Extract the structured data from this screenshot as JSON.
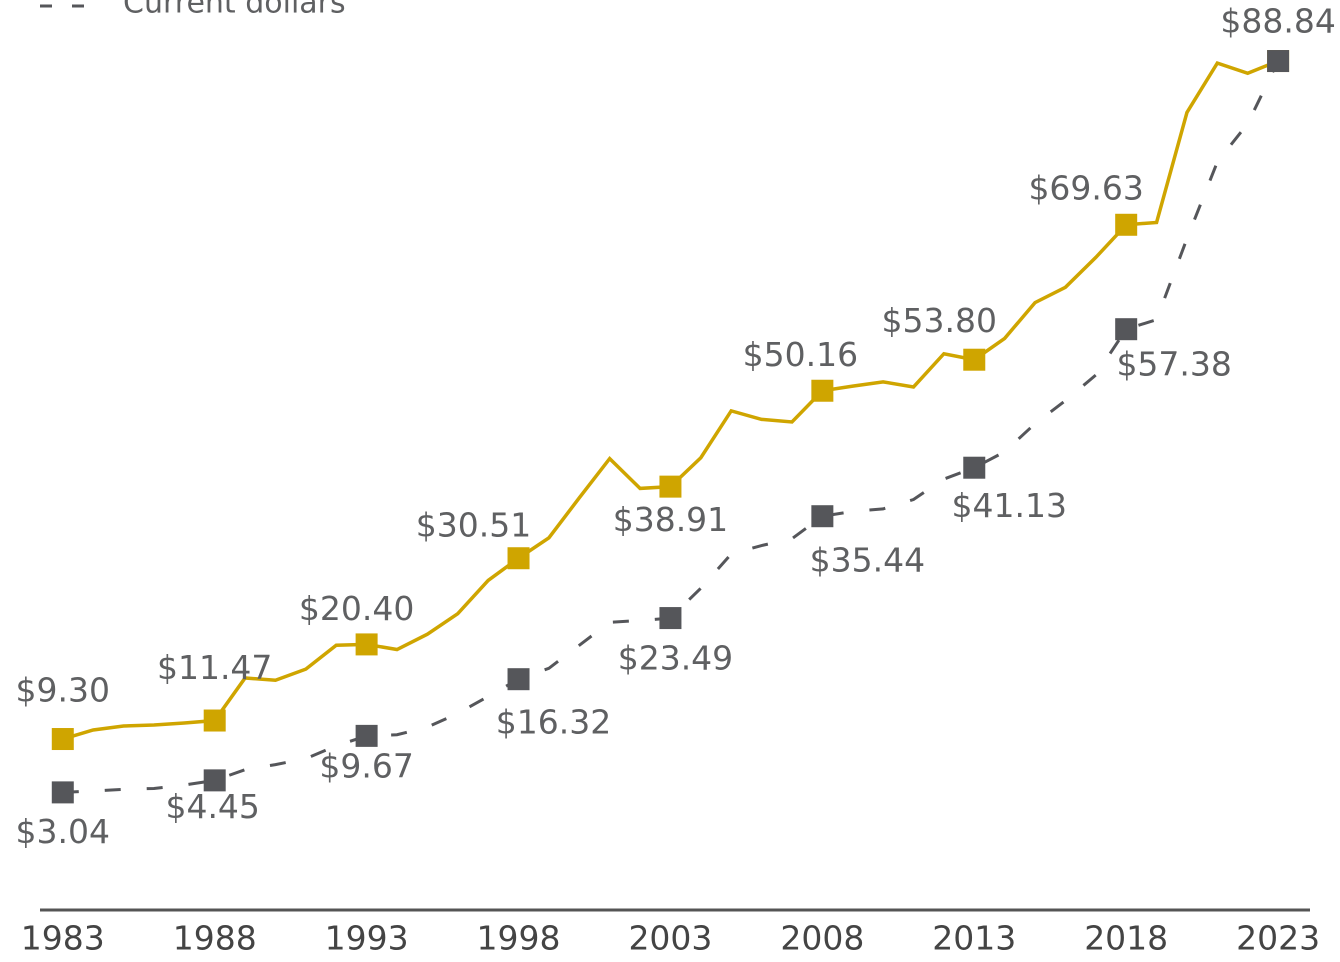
{
  "chart_data": {
    "type": "line",
    "x": [
      1983,
      1984,
      1985,
      1986,
      1987,
      1988,
      1989,
      1990,
      1991,
      1992,
      1993,
      1994,
      1995,
      1996,
      1997,
      1998,
      1999,
      2000,
      2001,
      2002,
      2003,
      2004,
      2005,
      2006,
      2007,
      2008,
      2009,
      2010,
      2011,
      2012,
      2013,
      2014,
      2015,
      2016,
      2017,
      2018,
      2019,
      2020,
      2021,
      2022,
      2023
    ],
    "xlim": [
      1982.25,
      2024.05
    ],
    "xticks": [
      1983,
      1988,
      1993,
      1998,
      2003,
      2008,
      2013,
      2018,
      2023
    ],
    "ylim": [
      0,
      96
    ],
    "series": [
      {
        "color": "#cfa500",
        "dashed": false,
        "values": [
          9.3,
          10.36,
          10.83,
          10.95,
          11.18,
          11.47,
          16.46,
          16.2,
          17.5,
          20.3,
          20.4,
          19.8,
          21.6,
          24.0,
          27.9,
          30.51,
          32.9,
          37.6,
          42.2,
          38.7,
          38.91,
          42.3,
          47.8,
          46.8,
          46.5,
          50.16,
          50.7,
          51.2,
          50.6,
          54.5,
          53.8,
          56.3,
          60.5,
          62.3,
          65.8,
          69.63,
          69.9,
          82.8,
          88.6,
          87.4,
          88.84
        ],
        "value_labels": [
          "$9.30",
          null,
          null,
          null,
          null,
          "$11.47",
          null,
          null,
          null,
          null,
          "$20.40",
          null,
          null,
          null,
          null,
          "$30.51",
          null,
          null,
          null,
          null,
          "$38.91",
          null,
          null,
          null,
          null,
          "$50.16",
          null,
          null,
          null,
          null,
          "$53.80",
          null,
          null,
          null,
          null,
          "$69.63",
          null,
          null,
          null,
          null,
          "$88.84"
        ]
      },
      {
        "name": "Current dollars",
        "color": "#55565a",
        "dashed": true,
        "values": [
          3.04,
          3.2,
          3.4,
          3.5,
          3.9,
          4.45,
          5.7,
          6.3,
          7.0,
          8.5,
          9.67,
          9.8,
          10.7,
          12.3,
          14.3,
          16.32,
          17.6,
          20.3,
          23.0,
          23.2,
          23.49,
          27.0,
          31.0,
          32.0,
          32.8,
          35.44,
          36.0,
          36.3,
          37.4,
          39.8,
          41.13,
          43.0,
          46.3,
          49.0,
          52.0,
          57.38,
          58.5,
          68.0,
          77.0,
          81.5,
          88.84
        ],
        "value_labels": [
          "$3.04",
          null,
          null,
          null,
          null,
          "$4.45",
          null,
          null,
          null,
          null,
          "$9.67",
          null,
          null,
          null,
          null,
          "$16.32",
          null,
          null,
          null,
          null,
          "$23.49",
          null,
          null,
          null,
          null,
          "$35.44",
          null,
          null,
          null,
          null,
          "$41.13",
          null,
          null,
          null,
          null,
          "$57.38",
          null,
          null,
          null,
          null,
          "$88.84"
        ]
      }
    ]
  }
}
